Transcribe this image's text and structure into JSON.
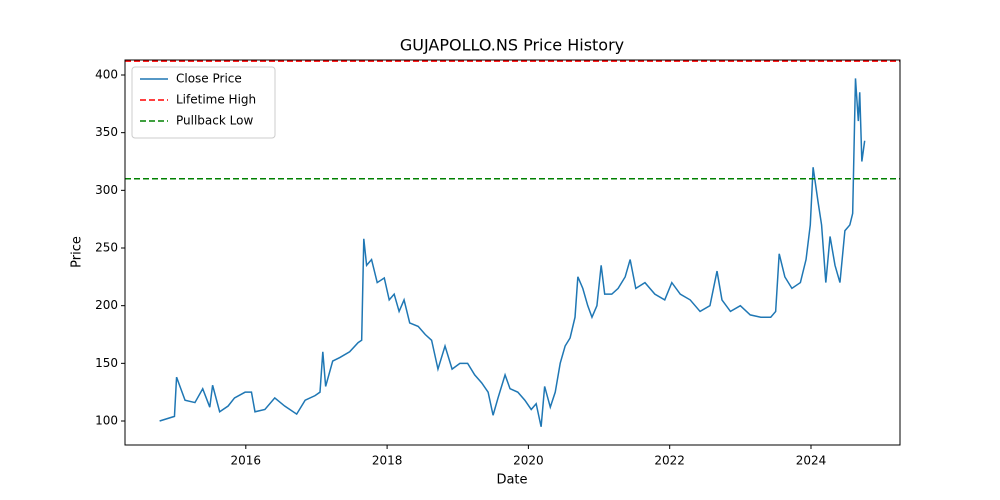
{
  "chart_data": {
    "type": "line",
    "title": "GUJAPOLLO.NS Price History",
    "x_label": "Date",
    "y_label": "Price",
    "xlim": [
      2014.29,
      2025.26
    ],
    "xticks": [
      2016,
      2018,
      2020,
      2022,
      2024
    ],
    "ylim": [
      79.2,
      413
    ],
    "yticks": [
      100,
      150,
      200,
      250,
      300,
      350,
      400
    ],
    "legend": "upper left",
    "grid": false,
    "x": [
      2014.78,
      2014.99,
      2015.02,
      2015.14,
      2015.28,
      2015.39,
      2015.49,
      2015.53,
      2015.63,
      2015.75,
      2015.84,
      2015.99,
      2016.08,
      2016.13,
      2016.27,
      2016.41,
      2016.55,
      2016.72,
      2016.84,
      2016.98,
      2017.05,
      2017.09,
      2017.13,
      2017.23,
      2017.33,
      2017.47,
      2017.59,
      2017.64,
      2017.67,
      2017.71,
      2017.78,
      2017.86,
      2017.96,
      2018.03,
      2018.1,
      2018.17,
      2018.24,
      2018.32,
      2018.44,
      2018.54,
      2018.63,
      2018.72,
      2018.82,
      2018.92,
      2019.03,
      2019.14,
      2019.24,
      2019.34,
      2019.43,
      2019.5,
      2019.57,
      2019.67,
      2019.74,
      2019.85,
      2019.95,
      2020.04,
      2020.11,
      2020.18,
      2020.23,
      2020.31,
      2020.38,
      2020.45,
      2020.52,
      2020.59,
      2020.66,
      2020.7,
      2020.77,
      2020.84,
      2020.9,
      2020.97,
      2021.03,
      2021.08,
      2021.18,
      2021.27,
      2021.37,
      2021.44,
      2021.52,
      2021.65,
      2021.79,
      2021.93,
      2022.03,
      2022.15,
      2022.29,
      2022.43,
      2022.57,
      2022.67,
      2022.74,
      2022.86,
      2023.0,
      2023.14,
      2023.29,
      2023.43,
      2023.5,
      2023.55,
      2023.63,
      2023.73,
      2023.85,
      2023.93,
      2023.99,
      2024.03,
      2024.1,
      2024.15,
      2024.21,
      2024.27,
      2024.34,
      2024.41,
      2024.48,
      2024.55,
      2024.59,
      2024.63,
      2024.67,
      2024.69,
      2024.72,
      2024.76
    ],
    "series": [
      {
        "name": "Close Price",
        "color": "#1f77b4",
        "values": [
          100,
          104,
          138,
          118,
          116,
          128,
          112,
          131,
          108,
          113,
          120,
          125,
          125,
          108,
          110,
          120,
          113,
          106,
          118,
          122,
          125,
          160,
          130,
          152,
          155,
          160,
          168,
          170,
          258,
          235,
          240,
          220,
          224,
          205,
          210,
          195,
          205,
          185,
          182,
          175,
          170,
          145,
          165,
          145,
          150,
          150,
          140,
          133,
          125,
          105,
          120,
          140,
          128,
          125,
          118,
          110,
          115,
          95,
          130,
          112,
          125,
          150,
          165,
          172,
          190,
          225,
          215,
          200,
          190,
          200,
          235,
          210,
          210,
          215,
          225,
          240,
          215,
          220,
          210,
          205,
          220,
          210,
          205,
          195,
          200,
          230,
          205,
          195,
          200,
          192,
          190,
          190,
          195,
          245,
          225,
          215,
          220,
          240,
          270,
          320,
          290,
          270,
          220,
          260,
          235,
          220,
          265,
          270,
          280,
          397,
          360,
          385,
          325,
          343
        ]
      }
    ],
    "hlines": [
      {
        "name": "Lifetime High",
        "color": "#ff0000",
        "value": 412
      },
      {
        "name": "Pullback Low",
        "color": "#008000",
        "value": 310
      }
    ]
  }
}
